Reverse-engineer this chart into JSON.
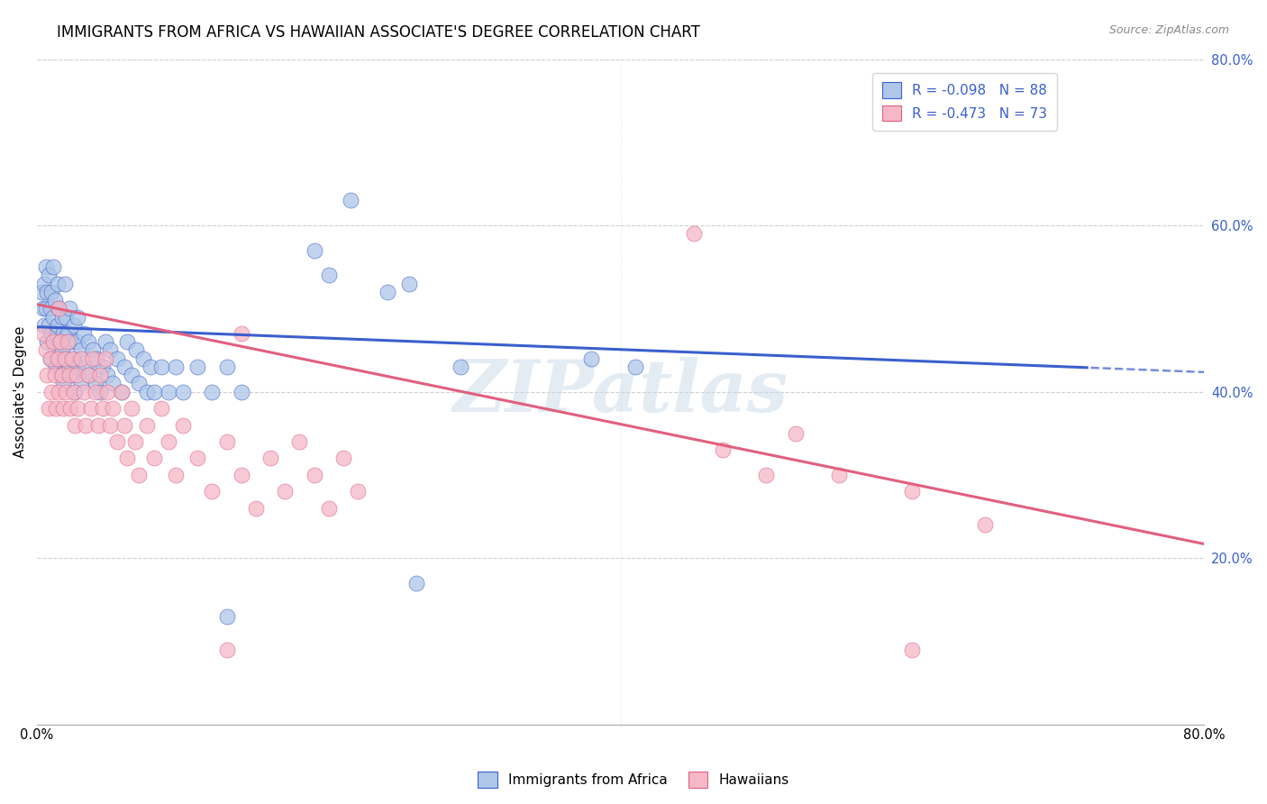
{
  "title": "IMMIGRANTS FROM AFRICA VS HAWAIIAN ASSOCIATE'S DEGREE CORRELATION CHART",
  "source": "Source: ZipAtlas.com",
  "ylabel": "Associate's Degree",
  "xlim": [
    0.0,
    0.8
  ],
  "ylim": [
    0.0,
    0.8
  ],
  "ytick_values": [
    0.2,
    0.4,
    0.6,
    0.8
  ],
  "xtick_values": [
    0.0,
    0.2,
    0.4,
    0.6,
    0.8
  ],
  "blue_color": "#aec6e8",
  "pink_color": "#f5b8c8",
  "blue_line_color": "#3a5fcd",
  "pink_line_color": "#e0607e",
  "blue_intercept": 0.478,
  "blue_slope": -0.068,
  "pink_intercept": 0.505,
  "pink_slope": -0.36,
  "background_color": "#ffffff",
  "grid_color": "#d0d0d0",
  "title_fontsize": 12,
  "axis_label_fontsize": 11,
  "tick_fontsize": 10.5,
  "legend_fontsize": 11,
  "blue_scatter": [
    [
      0.003,
      0.52
    ],
    [
      0.004,
      0.5
    ],
    [
      0.005,
      0.53
    ],
    [
      0.005,
      0.48
    ],
    [
      0.006,
      0.55
    ],
    [
      0.006,
      0.5
    ],
    [
      0.007,
      0.46
    ],
    [
      0.007,
      0.52
    ],
    [
      0.008,
      0.48
    ],
    [
      0.008,
      0.54
    ],
    [
      0.009,
      0.5
    ],
    [
      0.009,
      0.44
    ],
    [
      0.01,
      0.52
    ],
    [
      0.01,
      0.47
    ],
    [
      0.011,
      0.55
    ],
    [
      0.011,
      0.49
    ],
    [
      0.012,
      0.45
    ],
    [
      0.012,
      0.51
    ],
    [
      0.013,
      0.47
    ],
    [
      0.013,
      0.43
    ],
    [
      0.014,
      0.53
    ],
    [
      0.014,
      0.48
    ],
    [
      0.015,
      0.44
    ],
    [
      0.015,
      0.5
    ],
    [
      0.016,
      0.46
    ],
    [
      0.016,
      0.42
    ],
    [
      0.017,
      0.49
    ],
    [
      0.017,
      0.45
    ],
    [
      0.018,
      0.41
    ],
    [
      0.018,
      0.47
    ],
    [
      0.019,
      0.53
    ],
    [
      0.02,
      0.49
    ],
    [
      0.02,
      0.44
    ],
    [
      0.021,
      0.47
    ],
    [
      0.022,
      0.43
    ],
    [
      0.022,
      0.5
    ],
    [
      0.023,
      0.46
    ],
    [
      0.024,
      0.42
    ],
    [
      0.025,
      0.48
    ],
    [
      0.025,
      0.44
    ],
    [
      0.026,
      0.4
    ],
    [
      0.027,
      0.46
    ],
    [
      0.028,
      0.43
    ],
    [
      0.028,
      0.49
    ],
    [
      0.03,
      0.45
    ],
    [
      0.03,
      0.41
    ],
    [
      0.032,
      0.47
    ],
    [
      0.033,
      0.43
    ],
    [
      0.035,
      0.46
    ],
    [
      0.036,
      0.42
    ],
    [
      0.038,
      0.45
    ],
    [
      0.04,
      0.41
    ],
    [
      0.041,
      0.44
    ],
    [
      0.043,
      0.4
    ],
    [
      0.045,
      0.43
    ],
    [
      0.047,
      0.46
    ],
    [
      0.048,
      0.42
    ],
    [
      0.05,
      0.45
    ],
    [
      0.052,
      0.41
    ],
    [
      0.055,
      0.44
    ],
    [
      0.058,
      0.4
    ],
    [
      0.06,
      0.43
    ],
    [
      0.062,
      0.46
    ],
    [
      0.065,
      0.42
    ],
    [
      0.068,
      0.45
    ],
    [
      0.07,
      0.41
    ],
    [
      0.073,
      0.44
    ],
    [
      0.075,
      0.4
    ],
    [
      0.078,
      0.43
    ],
    [
      0.08,
      0.4
    ],
    [
      0.085,
      0.43
    ],
    [
      0.09,
      0.4
    ],
    [
      0.095,
      0.43
    ],
    [
      0.1,
      0.4
    ],
    [
      0.11,
      0.43
    ],
    [
      0.12,
      0.4
    ],
    [
      0.13,
      0.43
    ],
    [
      0.14,
      0.4
    ],
    [
      0.19,
      0.57
    ],
    [
      0.2,
      0.54
    ],
    [
      0.215,
      0.63
    ],
    [
      0.24,
      0.52
    ],
    [
      0.255,
      0.53
    ],
    [
      0.29,
      0.43
    ],
    [
      0.38,
      0.44
    ],
    [
      0.41,
      0.43
    ],
    [
      0.13,
      0.13
    ],
    [
      0.26,
      0.17
    ]
  ],
  "pink_scatter": [
    [
      0.004,
      0.47
    ],
    [
      0.006,
      0.45
    ],
    [
      0.007,
      0.42
    ],
    [
      0.008,
      0.38
    ],
    [
      0.009,
      0.44
    ],
    [
      0.01,
      0.4
    ],
    [
      0.011,
      0.46
    ],
    [
      0.012,
      0.42
    ],
    [
      0.013,
      0.38
    ],
    [
      0.014,
      0.44
    ],
    [
      0.015,
      0.5
    ],
    [
      0.015,
      0.4
    ],
    [
      0.016,
      0.46
    ],
    [
      0.017,
      0.42
    ],
    [
      0.018,
      0.38
    ],
    [
      0.019,
      0.44
    ],
    [
      0.02,
      0.4
    ],
    [
      0.021,
      0.46
    ],
    [
      0.022,
      0.42
    ],
    [
      0.023,
      0.38
    ],
    [
      0.024,
      0.44
    ],
    [
      0.025,
      0.4
    ],
    [
      0.026,
      0.36
    ],
    [
      0.027,
      0.42
    ],
    [
      0.028,
      0.38
    ],
    [
      0.03,
      0.44
    ],
    [
      0.032,
      0.4
    ],
    [
      0.033,
      0.36
    ],
    [
      0.035,
      0.42
    ],
    [
      0.037,
      0.38
    ],
    [
      0.038,
      0.44
    ],
    [
      0.04,
      0.4
    ],
    [
      0.042,
      0.36
    ],
    [
      0.043,
      0.42
    ],
    [
      0.045,
      0.38
    ],
    [
      0.047,
      0.44
    ],
    [
      0.048,
      0.4
    ],
    [
      0.05,
      0.36
    ],
    [
      0.052,
      0.38
    ],
    [
      0.055,
      0.34
    ],
    [
      0.058,
      0.4
    ],
    [
      0.06,
      0.36
    ],
    [
      0.062,
      0.32
    ],
    [
      0.065,
      0.38
    ],
    [
      0.067,
      0.34
    ],
    [
      0.07,
      0.3
    ],
    [
      0.075,
      0.36
    ],
    [
      0.08,
      0.32
    ],
    [
      0.085,
      0.38
    ],
    [
      0.09,
      0.34
    ],
    [
      0.095,
      0.3
    ],
    [
      0.1,
      0.36
    ],
    [
      0.11,
      0.32
    ],
    [
      0.12,
      0.28
    ],
    [
      0.13,
      0.34
    ],
    [
      0.14,
      0.3
    ],
    [
      0.15,
      0.26
    ],
    [
      0.16,
      0.32
    ],
    [
      0.17,
      0.28
    ],
    [
      0.18,
      0.34
    ],
    [
      0.19,
      0.3
    ],
    [
      0.2,
      0.26
    ],
    [
      0.21,
      0.32
    ],
    [
      0.22,
      0.28
    ],
    [
      0.14,
      0.47
    ],
    [
      0.45,
      0.59
    ],
    [
      0.47,
      0.33
    ],
    [
      0.5,
      0.3
    ],
    [
      0.52,
      0.35
    ],
    [
      0.55,
      0.3
    ],
    [
      0.6,
      0.28
    ],
    [
      0.65,
      0.24
    ],
    [
      0.13,
      0.09
    ],
    [
      0.6,
      0.09
    ]
  ]
}
